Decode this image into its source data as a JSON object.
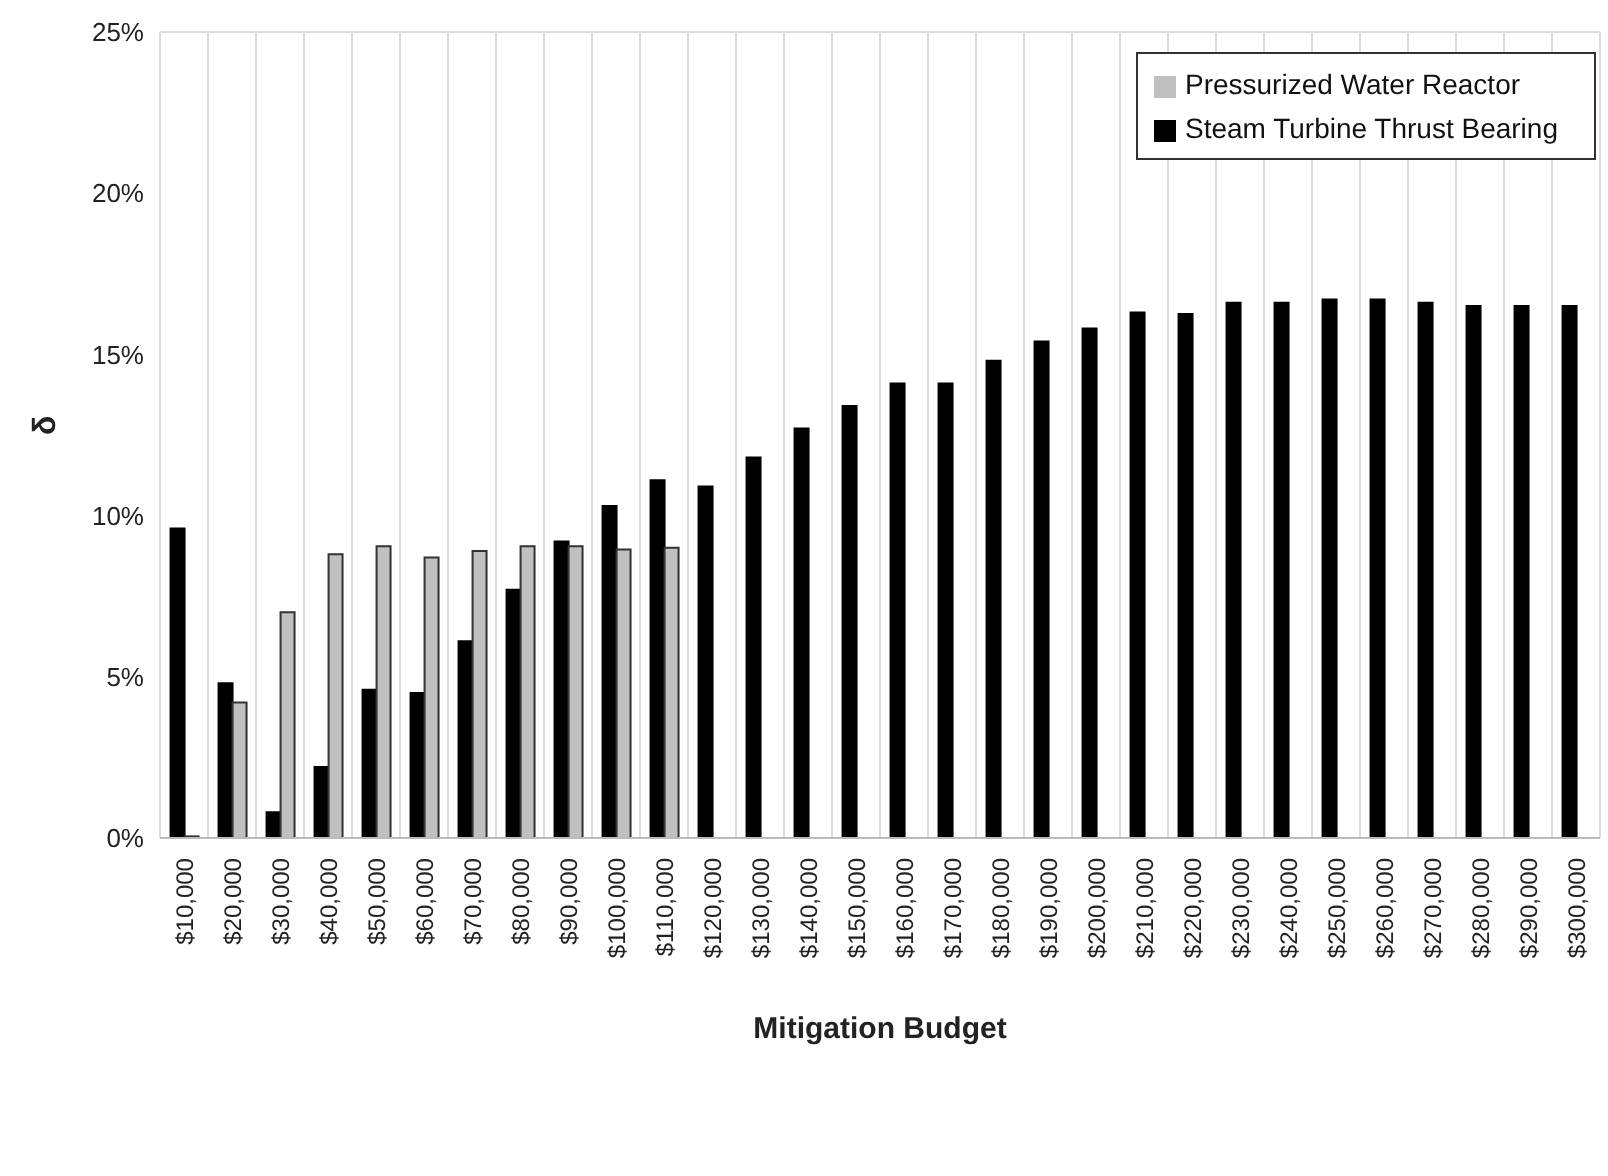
{
  "chart_data": {
    "type": "bar",
    "xlabel": "Mitigation Budget",
    "ylabel": "δ",
    "categories": [
      "$10,000",
      "$20,000",
      "$30,000",
      "$40,000",
      "$50,000",
      "$60,000",
      "$70,000",
      "$80,000",
      "$90,000",
      "$100,000",
      "$110,000",
      "$120,000",
      "$130,000",
      "$140,000",
      "$150,000",
      "$160,000",
      "$170,000",
      "$180,000",
      "$190,000",
      "$200,000",
      "$210,000",
      "$220,000",
      "$230,000",
      "$240,000",
      "$250,000",
      "$260,000",
      "$270,000",
      "$280,000",
      "$290,000",
      "$300,000"
    ],
    "series": [
      {
        "name": "Steam Turbine Thrust Bearing",
        "color": "#000000",
        "values": [
          9.6,
          4.8,
          0.8,
          2.2,
          4.6,
          4.5,
          6.1,
          7.7,
          9.2,
          10.3,
          11.1,
          10.9,
          11.8,
          12.7,
          13.4,
          14.1,
          14.1,
          14.8,
          15.4,
          15.8,
          16.3,
          16.25,
          16.6,
          16.6,
          16.7,
          16.7,
          16.6,
          16.5,
          16.5,
          16.5
        ]
      },
      {
        "name": "Pressurized Water Reactor",
        "color": "#c0c0c0",
        "values": [
          0.05,
          4.2,
          7.0,
          8.8,
          9.05,
          8.7,
          8.9,
          9.05,
          9.05,
          8.95,
          9.0,
          null,
          null,
          null,
          null,
          null,
          null,
          null,
          null,
          null,
          null,
          null,
          null,
          null,
          null,
          null,
          null,
          null,
          null,
          null
        ]
      }
    ],
    "ylim": [
      0,
      25
    ],
    "yticks": [
      {
        "value": 0,
        "label": "0%"
      },
      {
        "value": 5,
        "label": "5%"
      },
      {
        "value": 10,
        "label": "10%"
      },
      {
        "value": 15,
        "label": "15%"
      },
      {
        "value": 20,
        "label": "20%"
      },
      {
        "value": 25,
        "label": "25%"
      }
    ],
    "grid": true,
    "legend": "top right"
  }
}
